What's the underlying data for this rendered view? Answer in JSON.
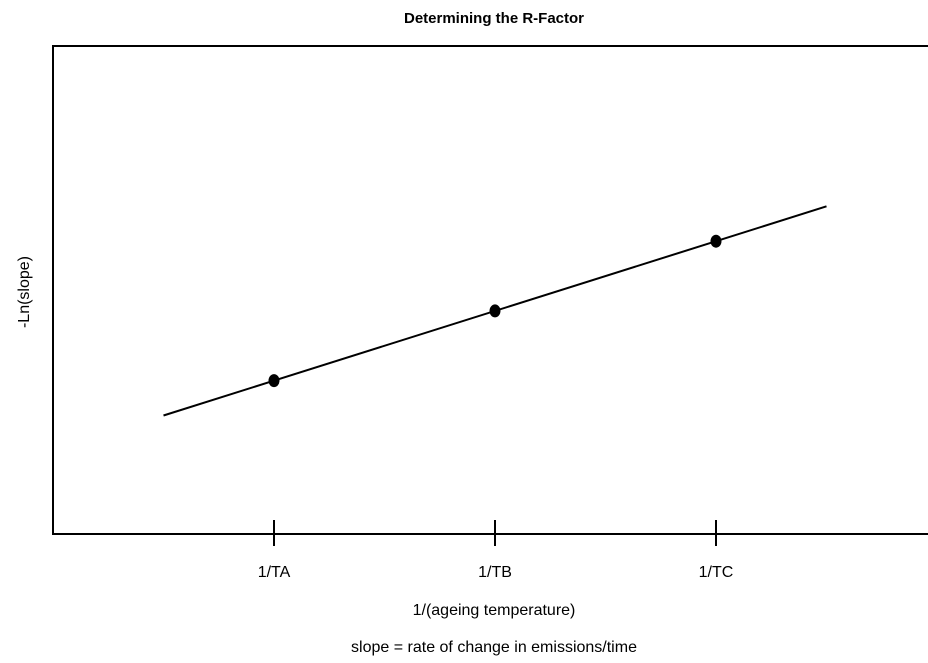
{
  "chart_data": {
    "type": "line",
    "title": "Determining the R-Factor",
    "xlabel": "1/(ageing temperature)",
    "ylabel": "-Ln(slope)",
    "footnote": "slope = rate of change in emissions/time",
    "categories": [
      "1/TA",
      "1/TB",
      "1/TC"
    ],
    "x": [
      1,
      2,
      3
    ],
    "series": [
      {
        "values": [
          1,
          2,
          3
        ]
      }
    ],
    "fit_line": {
      "x": [
        0.5,
        3.5
      ],
      "y": [
        0.5,
        3.5
      ]
    },
    "xlim": [
      0,
      4
    ],
    "ylim": [
      -1.2,
      5.8
    ],
    "grid": false,
    "legend": "none",
    "y_tick_labels": false,
    "colors": {
      "line": "#000000",
      "marker": "#000000",
      "frame": "#000000",
      "background": "#ffffff"
    }
  }
}
